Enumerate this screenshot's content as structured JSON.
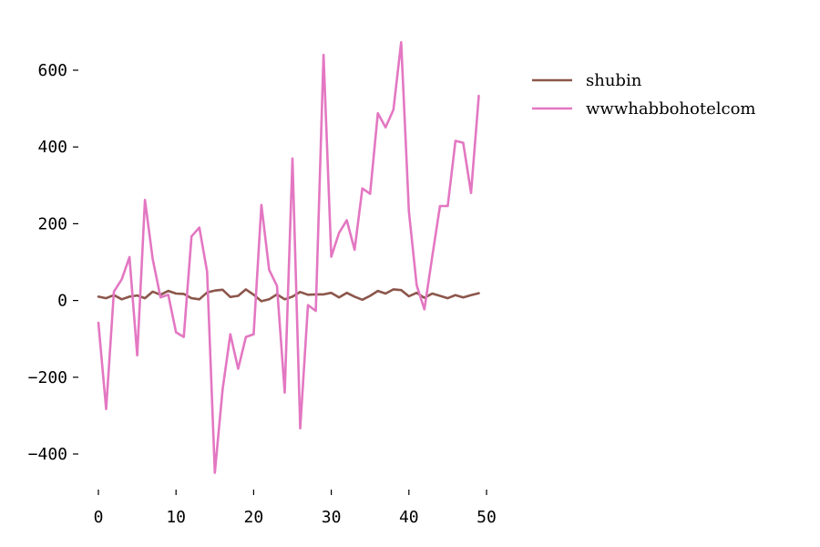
{
  "chart_data": {
    "type": "line",
    "title": "",
    "xlabel": "",
    "ylabel": "",
    "xlim": [
      0,
      50
    ],
    "ylim": [
      -500,
      700
    ],
    "x_ticks": [
      0,
      10,
      20,
      30,
      40,
      50
    ],
    "y_ticks": [
      -400,
      -200,
      0,
      200,
      400,
      600
    ],
    "x_tick_labels": [
      "0",
      "10",
      "20",
      "30",
      "40",
      "50"
    ],
    "y_tick_labels": [
      "−400",
      "−200",
      "0",
      "200",
      "400",
      "600"
    ],
    "grid": false,
    "legend_position": "top-right",
    "x": [
      0,
      1,
      2,
      3,
      4,
      5,
      6,
      7,
      8,
      9,
      10,
      11,
      12,
      13,
      14,
      15,
      16,
      17,
      18,
      19,
      20,
      21,
      22,
      23,
      24,
      25,
      26,
      27,
      28,
      29,
      30,
      31,
      32,
      33,
      34,
      35,
      36,
      37,
      38,
      39,
      40,
      41,
      42,
      43,
      44,
      45,
      46,
      47,
      48,
      49
    ],
    "series": [
      {
        "name": "shubin",
        "color": "#8c564b",
        "values": [
          10,
          6,
          14,
          3,
          10,
          13,
          6,
          23,
          15,
          25,
          18,
          17,
          6,
          3,
          21,
          26,
          28,
          9,
          12,
          29,
          15,
          -2,
          3,
          16,
          3,
          10,
          22,
          15,
          16,
          16,
          20,
          8,
          20,
          10,
          2,
          12,
          25,
          18,
          29,
          27,
          11,
          20,
          7,
          18,
          12,
          6,
          14,
          8,
          14,
          19
        ]
      },
      {
        "name": "wwwhabbohotelcom",
        "color": "#e377c2",
        "values": [
          -58,
          -283,
          23,
          55,
          113,
          -143,
          262,
          108,
          8,
          15,
          -83,
          -95,
          167,
          190,
          75,
          -449,
          -232,
          -88,
          -178,
          -95,
          -88,
          249,
          80,
          38,
          -240,
          370,
          -333,
          -12,
          -27,
          640,
          114,
          176,
          209,
          132,
          292,
          278,
          488,
          451,
          497,
          673,
          232,
          40,
          -23,
          114,
          246,
          246,
          416,
          411,
          280,
          533
        ]
      }
    ]
  }
}
